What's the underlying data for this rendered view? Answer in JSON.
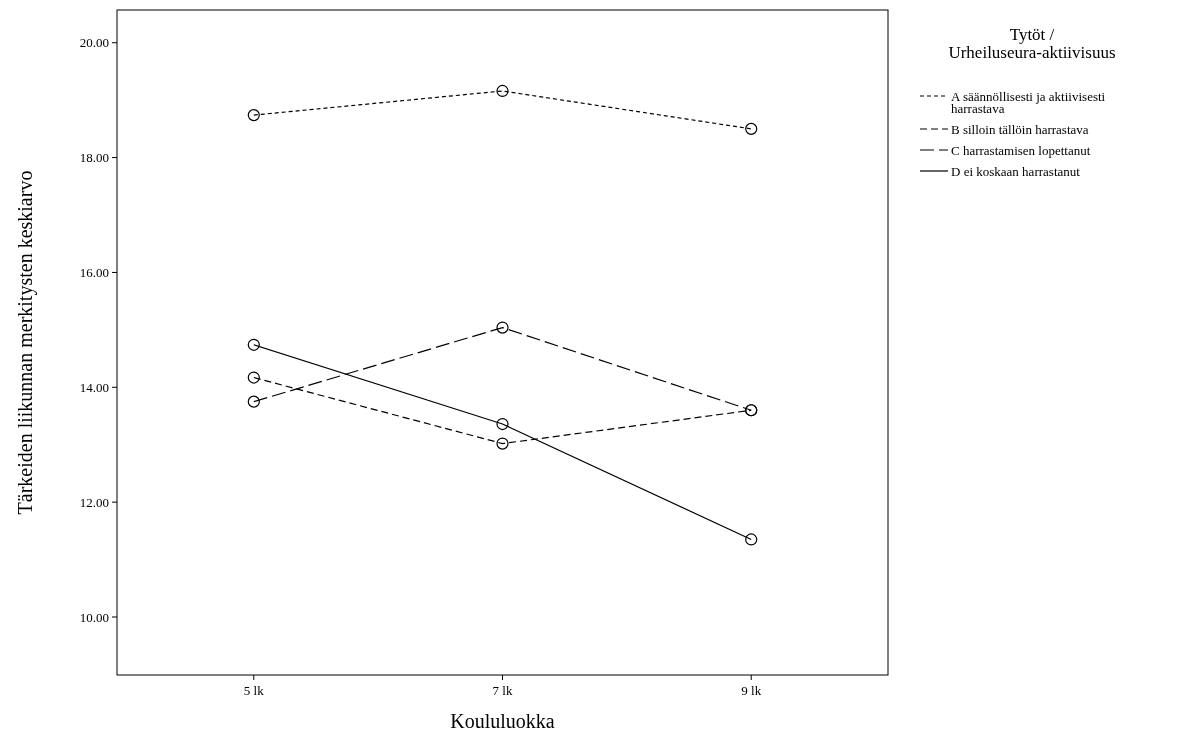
{
  "chart_data": {
    "type": "line",
    "xlabel": "Koululuokka",
    "ylabel": "Tärkeiden liikunnan merkitysten keskiarvo",
    "legend_title": "Tytöt / Urheiluseura-aktiivisuus",
    "categories": [
      "5 lk",
      "7 lk",
      "9 lk"
    ],
    "ylim": [
      8.99,
      20.57
    ],
    "yticks": [
      {
        "value": 10,
        "label": "10.00"
      },
      {
        "value": 12,
        "label": "12.00"
      },
      {
        "value": 14,
        "label": "14.00"
      },
      {
        "value": 16,
        "label": "16.00"
      },
      {
        "value": 18,
        "label": "18.00"
      },
      {
        "value": 20,
        "label": "20.00"
      }
    ],
    "marker": "circle",
    "legend": "top right",
    "grid": false,
    "series": [
      {
        "name": "A säännöllisesti ja aktiivisesti harrastava",
        "color": "#000000",
        "line_style": "dotted",
        "values": [
          18.74,
          19.16,
          18.5
        ]
      },
      {
        "name": "B silloin tällöin harrastava",
        "color": "#000000",
        "line_style": "dashed",
        "values": [
          14.17,
          13.02,
          13.6
        ]
      },
      {
        "name": "C harrastamisen lopettanut",
        "color": "#000000",
        "line_style": "longdash",
        "values": [
          13.75,
          15.04,
          13.6
        ]
      },
      {
        "name": "D ei koskaan harrastanut",
        "color": "#000000",
        "line_style": "solid",
        "values": [
          14.74,
          13.36,
          11.35
        ]
      }
    ]
  }
}
